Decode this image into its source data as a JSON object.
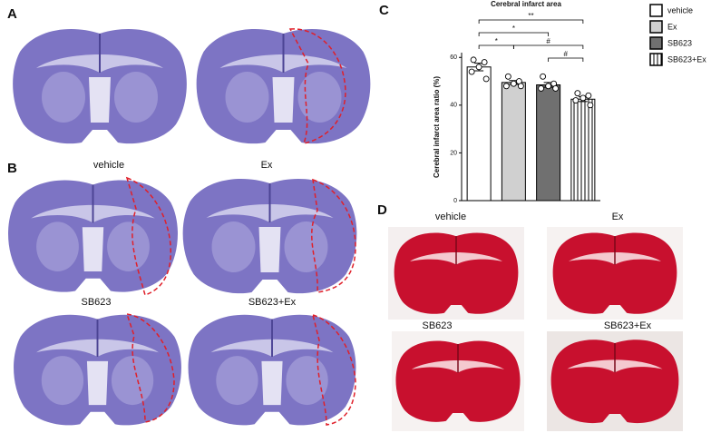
{
  "panel_labels": [
    "A",
    "B",
    "C",
    "D"
  ],
  "panel_b_captions": [
    "vehicle",
    "Ex",
    "SB623",
    "SB623+Ex"
  ],
  "panel_d_captions": [
    "vehicle",
    "Ex",
    "SB623",
    "SB623+Ex"
  ],
  "chart_data": {
    "type": "bar",
    "title": "Cerebral infarct area",
    "y_label": "Cerebral infarct area ratio (%)",
    "ylim": [
      0,
      62
    ],
    "yticks": [
      0,
      20,
      40,
      60
    ],
    "series": [
      {
        "name": "vehicle",
        "color": "#ffffff",
        "values": [
          56
        ],
        "errors": [
          1.6
        ],
        "points": [
          59,
          58,
          56,
          54,
          51
        ]
      },
      {
        "name": "Ex",
        "color": "#d0d0d0",
        "values": [
          49.5
        ],
        "errors": [
          0.8
        ],
        "points": [
          52,
          50,
          49,
          48,
          48
        ]
      },
      {
        "name": "SB623",
        "color": "#707070",
        "values": [
          48.5
        ],
        "errors": [
          1
        ],
        "points": [
          52,
          49,
          48,
          47,
          47
        ]
      },
      {
        "name": "SB623+Ex",
        "color": "#ffffff",
        "pattern": "vertical-lines",
        "values": [
          42.5
        ],
        "errors": [
          1
        ],
        "points": [
          45,
          44,
          43,
          42,
          40
        ]
      }
    ],
    "annotations": [
      "**",
      "*",
      "*",
      "#",
      "#"
    ]
  }
}
